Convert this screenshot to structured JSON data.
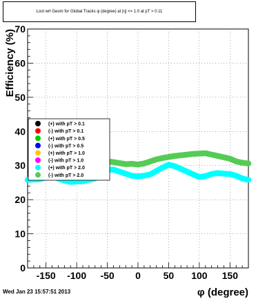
{
  "title": "Lost wrt Geom for Global Tracks φ (degree) at |η| <= 1.0 at pT > 0.11",
  "footer": "Wed Jan 23 15:57:51 2013",
  "chart_data": {
    "type": "scatter",
    "xlabel": "φ (degree)",
    "ylabel": "Efficiency (%)",
    "xlim": [
      -180,
      180
    ],
    "ylim": [
      0,
      70
    ],
    "x_ticks": [
      -150,
      -100,
      -50,
      0,
      50,
      100,
      150
    ],
    "y_ticks": [
      0,
      10,
      20,
      30,
      40,
      50,
      60,
      70
    ],
    "grid": true,
    "legend_position": "left-middle",
    "legend": [
      {
        "label": "(+) with pT > 0.1",
        "color": "#000000"
      },
      {
        "label": "(-) with pT > 0.1",
        "color": "#ff0000"
      },
      {
        "label": "(+) with pT > 0.5",
        "color": "#00cc00"
      },
      {
        "label": "(-) with pT > 0.5",
        "color": "#0000ff"
      },
      {
        "label": "(+) with pT > 1.0",
        "color": "#ffcc00"
      },
      {
        "label": "(-) with pT > 1.0",
        "color": "#ff00ff"
      },
      {
        "label": "(+) with pT > 2.0",
        "color": "#00ffff"
      },
      {
        "label": "(-) with pT > 2.0",
        "color": "#55cc55"
      }
    ],
    "series": [
      {
        "name": "(-) with pT > 2.0",
        "color": "#55cc55",
        "x": [
          -60,
          -50,
          -40,
          -30,
          -20,
          -10,
          0,
          10,
          20,
          30,
          40,
          50,
          60,
          70,
          80,
          90,
          100,
          110,
          120,
          130,
          140,
          150,
          160,
          170,
          180
        ],
        "y": [
          31.0,
          31.2,
          31.0,
          30.7,
          30.4,
          30.5,
          30.3,
          30.6,
          31.2,
          31.8,
          32.2,
          32.5,
          32.8,
          33.0,
          33.2,
          33.4,
          33.5,
          33.6,
          33.2,
          32.8,
          32.4,
          32.0,
          31.2,
          30.8,
          30.6
        ]
      },
      {
        "name": "(+) with pT > 2.0",
        "color": "#00ffff",
        "x": [
          -180,
          -170,
          -160,
          -150,
          -140,
          -130,
          -120,
          -110,
          -100,
          -90,
          -80,
          -70,
          -60,
          -50,
          -40,
          -30,
          -20,
          -10,
          0,
          10,
          20,
          30,
          40,
          50,
          60,
          70,
          80,
          90,
          100,
          110,
          120,
          130,
          140,
          150,
          160,
          170,
          180
        ],
        "y": [
          25.8,
          25.9,
          26.0,
          26.5,
          26.8,
          26.2,
          25.6,
          25.2,
          25.3,
          25.4,
          25.8,
          26.2,
          27.5,
          28.8,
          28.8,
          28.2,
          27.6,
          27.0,
          26.8,
          27.0,
          27.4,
          28.4,
          29.4,
          30.2,
          29.8,
          29.0,
          28.2,
          27.4,
          26.6,
          26.9,
          27.5,
          27.8,
          27.6,
          27.5,
          27.0,
          26.2,
          25.8
        ]
      }
    ]
  }
}
